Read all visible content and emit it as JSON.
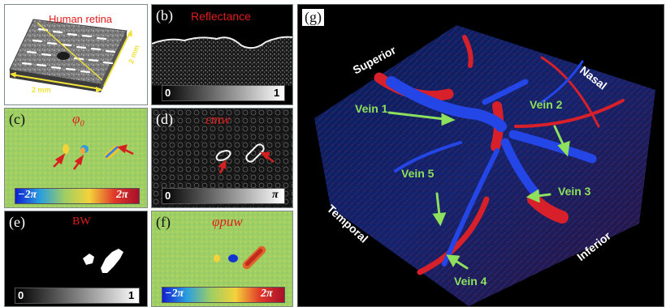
{
  "panels": {
    "a": {
      "label": "(a)",
      "title": "Human retina",
      "dim_x": "2 mm",
      "dim_y": "2 mm"
    },
    "b": {
      "label": "(b)",
      "title": "Reflectance",
      "cbar_min": "0",
      "cbar_max": "1"
    },
    "c": {
      "label": "(c)",
      "title": "φ₀",
      "cbar_min": "−2π",
      "cbar_max": "2π"
    },
    "d": {
      "label": "(d)",
      "title": "εmw",
      "cbar_min": "0",
      "cbar_max": "π"
    },
    "e": {
      "label": "(e)",
      "title": "BW",
      "cbar_min": "0",
      "cbar_max": "1"
    },
    "f": {
      "label": "(f)",
      "title": "φpuw",
      "cbar_min": "−2π",
      "cbar_max": "2π"
    },
    "g": {
      "label": "(g)",
      "orientation": {
        "superior": "Superior",
        "nasal": "Nasal",
        "temporal": "Temporal",
        "inferior": "Inferior"
      },
      "veins": [
        "Vein 1",
        "Vein 2",
        "Vein 3",
        "Vein 4",
        "Vein 5"
      ]
    }
  },
  "colors": {
    "title_red": "#e21d1d",
    "vein_label": "#8ee15c",
    "vessel_blue": "#2446e6",
    "vessel_red": "#d8202a",
    "phase_bg": "#9fce62"
  }
}
